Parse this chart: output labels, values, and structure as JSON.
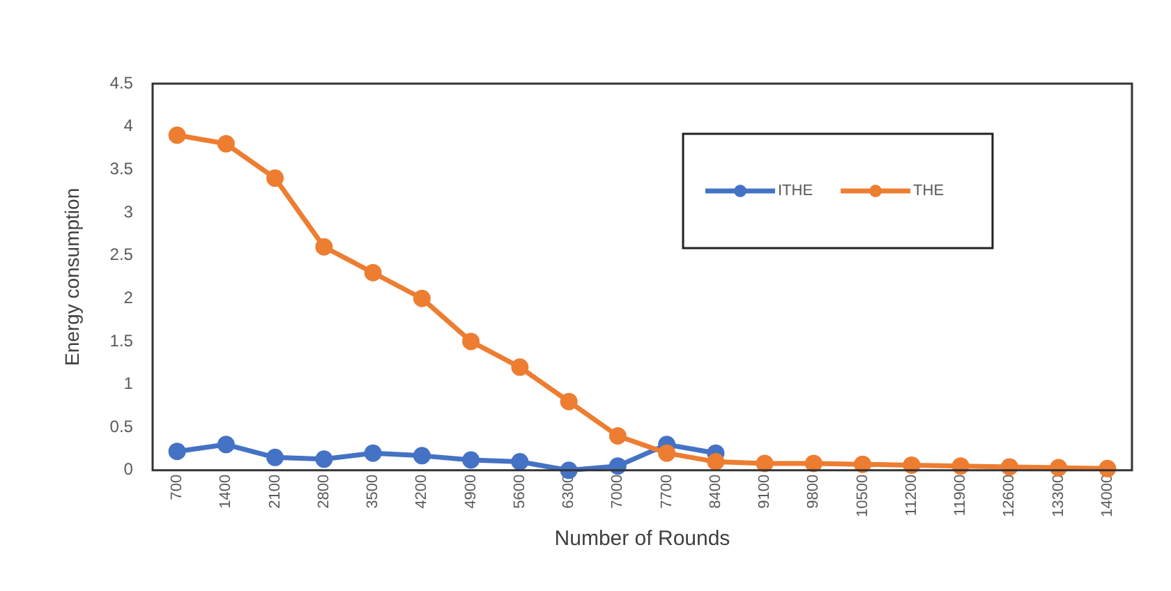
{
  "chart_data": {
    "type": "line",
    "xlabel": "Number of Rounds",
    "ylabel": "Energy consumption",
    "categories": [
      "700",
      "1400",
      "2100",
      "2800",
      "3500",
      "4200",
      "4900",
      "5600",
      "6300",
      "7000",
      "7700",
      "8400",
      "9100",
      "9800",
      "10500",
      "11200",
      "11900",
      "12600",
      "13300",
      "14000"
    ],
    "series": [
      {
        "name": "ITHE",
        "color": "#4472c4",
        "values": [
          0.22,
          0.3,
          0.15,
          0.13,
          0.2,
          0.17,
          0.12,
          0.1,
          0,
          0.05,
          0.3,
          0.2,
          null,
          null,
          null,
          null,
          null,
          null,
          null,
          null
        ]
      },
      {
        "name": "THE",
        "color": "#ed7d31",
        "values": [
          3.9,
          3.8,
          3.4,
          2.6,
          2.3,
          2.0,
          1.5,
          1.2,
          0.8,
          0.4,
          0.2,
          0.1,
          0.08,
          0.08,
          0.07,
          0.06,
          0.05,
          0.04,
          0.03,
          0.02
        ]
      }
    ],
    "ylim": [
      0,
      4.5
    ],
    "yticks": [
      0,
      0.5,
      1,
      1.5,
      2,
      2.5,
      3,
      3.5,
      4,
      4.5
    ],
    "grid": false,
    "legend": "top right",
    "marker": "circle",
    "line_style": "solid"
  }
}
